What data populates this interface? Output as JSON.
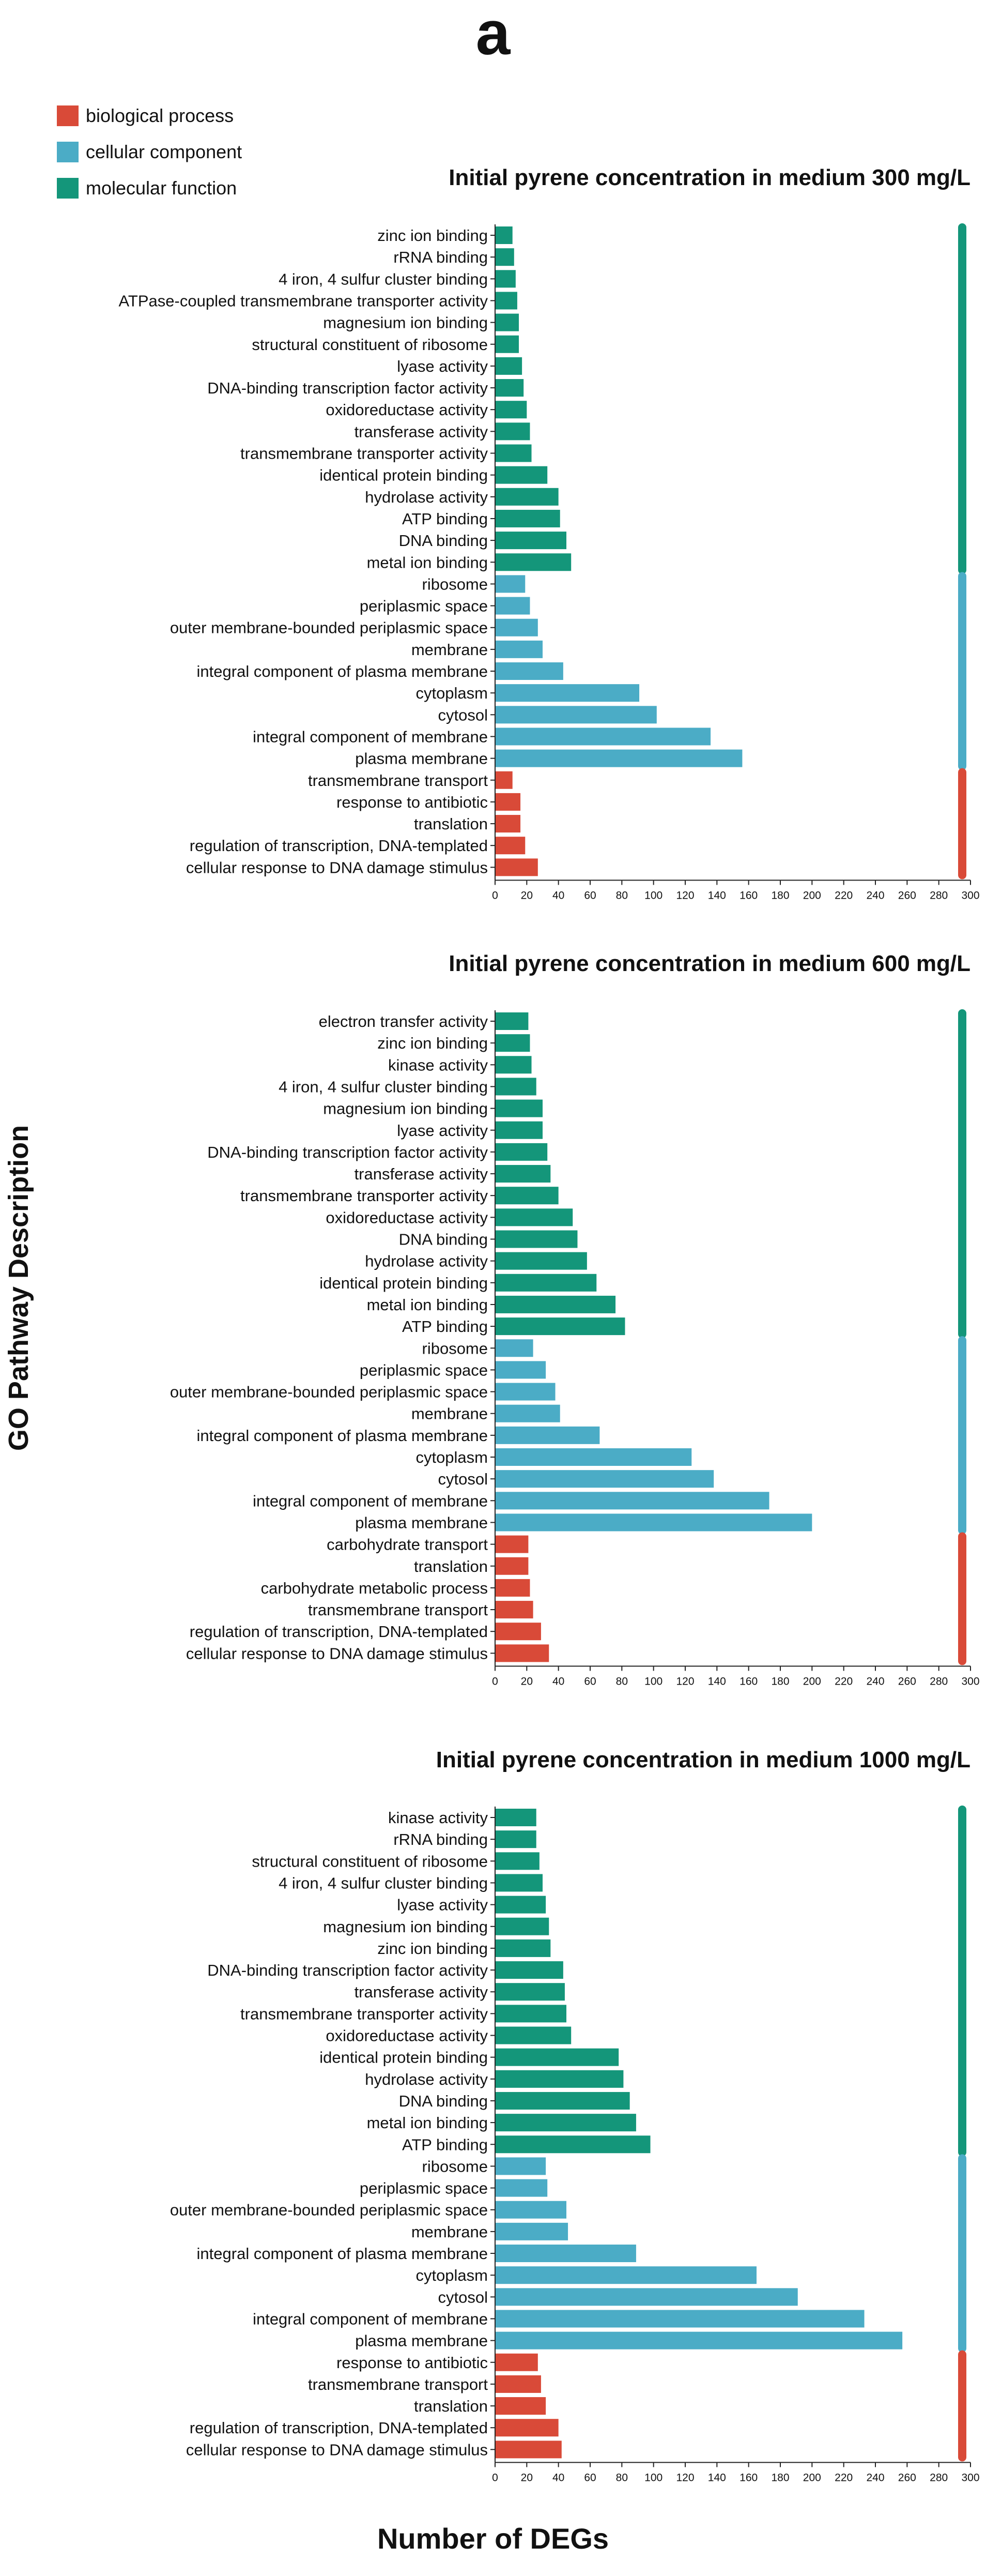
{
  "panel_label": "a",
  "axis_titles": {
    "y": "GO Pathway Description",
    "x": "Number of DEGs"
  },
  "legend": [
    {
      "label": "biological process",
      "color": "#d94a38"
    },
    {
      "label": "cellular component",
      "color": "#4bacc6"
    },
    {
      "label": "molecular function",
      "color": "#14967a"
    }
  ],
  "colors": {
    "biological process": "#d94a38",
    "cellular component": "#4bacc6",
    "molecular function": "#14967a"
  },
  "chart_data": [
    {
      "type": "bar",
      "orientation": "horizontal",
      "title": "Initial pyrene concentration in medium 300 mg/L",
      "xlabel": "Number of DEGs",
      "ylabel": "GO Pathway Description",
      "xlim": [
        0,
        300
      ],
      "xticks": [
        0,
        20,
        40,
        60,
        80,
        100,
        120,
        140,
        160,
        180,
        200,
        220,
        240,
        260,
        280,
        300
      ],
      "bars": [
        {
          "label": "zinc ion binding",
          "value": 11,
          "category": "molecular function"
        },
        {
          "label": "rRNA binding",
          "value": 12,
          "category": "molecular function"
        },
        {
          "label": "4 iron, 4 sulfur cluster binding",
          "value": 13,
          "category": "molecular function"
        },
        {
          "label": "ATPase-coupled transmembrane transporter activity",
          "value": 14,
          "category": "molecular function"
        },
        {
          "label": "magnesium ion binding",
          "value": 15,
          "category": "molecular function"
        },
        {
          "label": "structural constituent of ribosome",
          "value": 15,
          "category": "molecular function"
        },
        {
          "label": "lyase activity",
          "value": 17,
          "category": "molecular function"
        },
        {
          "label": "DNA-binding transcription factor activity",
          "value": 18,
          "category": "molecular function"
        },
        {
          "label": "oxidoreductase activity",
          "value": 20,
          "category": "molecular function"
        },
        {
          "label": "transferase activity",
          "value": 22,
          "category": "molecular function"
        },
        {
          "label": "transmembrane transporter activity",
          "value": 23,
          "category": "molecular function"
        },
        {
          "label": "identical protein binding",
          "value": 33,
          "category": "molecular function"
        },
        {
          "label": "hydrolase activity",
          "value": 40,
          "category": "molecular function"
        },
        {
          "label": "ATP binding",
          "value": 41,
          "category": "molecular function"
        },
        {
          "label": "DNA binding",
          "value": 45,
          "category": "molecular function"
        },
        {
          "label": "metal ion binding",
          "value": 48,
          "category": "molecular function"
        },
        {
          "label": "ribosome",
          "value": 19,
          "category": "cellular component"
        },
        {
          "label": "periplasmic space",
          "value": 22,
          "category": "cellular component"
        },
        {
          "label": "outer membrane-bounded periplasmic space",
          "value": 27,
          "category": "cellular component"
        },
        {
          "label": "membrane",
          "value": 30,
          "category": "cellular component"
        },
        {
          "label": "integral component of plasma membrane",
          "value": 43,
          "category": "cellular component"
        },
        {
          "label": "cytoplasm",
          "value": 91,
          "category": "cellular component"
        },
        {
          "label": "cytosol",
          "value": 102,
          "category": "cellular component"
        },
        {
          "label": "integral component of membrane",
          "value": 136,
          "category": "cellular component"
        },
        {
          "label": "plasma membrane",
          "value": 156,
          "category": "cellular component"
        },
        {
          "label": "transmembrane transport",
          "value": 11,
          "category": "biological process"
        },
        {
          "label": "response to antibiotic",
          "value": 16,
          "category": "biological process"
        },
        {
          "label": "translation",
          "value": 16,
          "category": "biological process"
        },
        {
          "label": "regulation of transcription, DNA-templated",
          "value": 19,
          "category": "biological process"
        },
        {
          "label": "cellular response to DNA damage stimulus",
          "value": 27,
          "category": "biological process"
        }
      ]
    },
    {
      "type": "bar",
      "orientation": "horizontal",
      "title": "Initial pyrene concentration in medium 600 mg/L",
      "xlabel": "Number of DEGs",
      "ylabel": "GO Pathway Description",
      "xlim": [
        0,
        300
      ],
      "xticks": [
        0,
        20,
        40,
        60,
        80,
        100,
        120,
        140,
        160,
        180,
        200,
        220,
        240,
        260,
        280,
        300
      ],
      "bars": [
        {
          "label": "electron transfer activity",
          "value": 21,
          "category": "molecular function"
        },
        {
          "label": "zinc ion binding",
          "value": 22,
          "category": "molecular function"
        },
        {
          "label": "kinase activity",
          "value": 23,
          "category": "molecular function"
        },
        {
          "label": "4 iron, 4 sulfur cluster binding",
          "value": 26,
          "category": "molecular function"
        },
        {
          "label": "magnesium ion binding",
          "value": 30,
          "category": "molecular function"
        },
        {
          "label": "lyase activity",
          "value": 30,
          "category": "molecular function"
        },
        {
          "label": "DNA-binding transcription factor activity",
          "value": 33,
          "category": "molecular function"
        },
        {
          "label": "transferase activity",
          "value": 35,
          "category": "molecular function"
        },
        {
          "label": "transmembrane transporter activity",
          "value": 40,
          "category": "molecular function"
        },
        {
          "label": "oxidoreductase activity",
          "value": 49,
          "category": "molecular function"
        },
        {
          "label": "DNA binding",
          "value": 52,
          "category": "molecular function"
        },
        {
          "label": "hydrolase activity",
          "value": 58,
          "category": "molecular function"
        },
        {
          "label": "identical protein binding",
          "value": 64,
          "category": "molecular function"
        },
        {
          "label": "metal ion binding",
          "value": 76,
          "category": "molecular function"
        },
        {
          "label": "ATP binding",
          "value": 82,
          "category": "molecular function"
        },
        {
          "label": "ribosome",
          "value": 24,
          "category": "cellular component"
        },
        {
          "label": "periplasmic space",
          "value": 32,
          "category": "cellular component"
        },
        {
          "label": "outer membrane-bounded periplasmic space",
          "value": 38,
          "category": "cellular component"
        },
        {
          "label": "membrane",
          "value": 41,
          "category": "cellular component"
        },
        {
          "label": "integral component of plasma membrane",
          "value": 66,
          "category": "cellular component"
        },
        {
          "label": "cytoplasm",
          "value": 124,
          "category": "cellular component"
        },
        {
          "label": "cytosol",
          "value": 138,
          "category": "cellular component"
        },
        {
          "label": "integral component of membrane",
          "value": 173,
          "category": "cellular component"
        },
        {
          "label": "plasma membrane",
          "value": 200,
          "category": "cellular component"
        },
        {
          "label": "carbohydrate transport",
          "value": 21,
          "category": "biological process"
        },
        {
          "label": "translation",
          "value": 21,
          "category": "biological process"
        },
        {
          "label": "carbohydrate metabolic process",
          "value": 22,
          "category": "biological process"
        },
        {
          "label": "transmembrane transport",
          "value": 24,
          "category": "biological process"
        },
        {
          "label": "regulation of transcription, DNA-templated",
          "value": 29,
          "category": "biological process"
        },
        {
          "label": "cellular response to DNA damage stimulus",
          "value": 34,
          "category": "biological process"
        }
      ]
    },
    {
      "type": "bar",
      "orientation": "horizontal",
      "title": "Initial pyrene concentration in medium 1000 mg/L",
      "xlabel": "Number of DEGs",
      "ylabel": "GO Pathway Description",
      "xlim": [
        0,
        300
      ],
      "xticks": [
        0,
        20,
        40,
        60,
        80,
        100,
        120,
        140,
        160,
        180,
        200,
        220,
        240,
        260,
        280,
        300
      ],
      "bars": [
        {
          "label": "kinase activity",
          "value": 26,
          "category": "molecular function"
        },
        {
          "label": "rRNA binding",
          "value": 26,
          "category": "molecular function"
        },
        {
          "label": "structural constituent of ribosome",
          "value": 28,
          "category": "molecular function"
        },
        {
          "label": "4 iron, 4 sulfur cluster binding",
          "value": 30,
          "category": "molecular function"
        },
        {
          "label": "lyase activity",
          "value": 32,
          "category": "molecular function"
        },
        {
          "label": "magnesium ion binding",
          "value": 34,
          "category": "molecular function"
        },
        {
          "label": "zinc ion binding",
          "value": 35,
          "category": "molecular function"
        },
        {
          "label": "DNA-binding transcription factor activity",
          "value": 43,
          "category": "molecular function"
        },
        {
          "label": "transferase activity",
          "value": 44,
          "category": "molecular function"
        },
        {
          "label": "transmembrane transporter activity",
          "value": 45,
          "category": "molecular function"
        },
        {
          "label": "oxidoreductase activity",
          "value": 48,
          "category": "molecular function"
        },
        {
          "label": "identical protein binding",
          "value": 78,
          "category": "molecular function"
        },
        {
          "label": "hydrolase activity",
          "value": 81,
          "category": "molecular function"
        },
        {
          "label": "DNA binding",
          "value": 85,
          "category": "molecular function"
        },
        {
          "label": "metal ion binding",
          "value": 89,
          "category": "molecular function"
        },
        {
          "label": "ATP binding",
          "value": 98,
          "category": "molecular function"
        },
        {
          "label": "ribosome",
          "value": 32,
          "category": "cellular component"
        },
        {
          "label": "periplasmic space",
          "value": 33,
          "category": "cellular component"
        },
        {
          "label": "outer membrane-bounded periplasmic space",
          "value": 45,
          "category": "cellular component"
        },
        {
          "label": "membrane",
          "value": 46,
          "category": "cellular component"
        },
        {
          "label": "integral component of plasma membrane",
          "value": 89,
          "category": "cellular component"
        },
        {
          "label": "cytoplasm",
          "value": 165,
          "category": "cellular component"
        },
        {
          "label": "cytosol",
          "value": 191,
          "category": "cellular component"
        },
        {
          "label": "integral component of membrane",
          "value": 233,
          "category": "cellular component"
        },
        {
          "label": "plasma membrane",
          "value": 257,
          "category": "cellular component"
        },
        {
          "label": "response to antibiotic",
          "value": 27,
          "category": "biological process"
        },
        {
          "label": "transmembrane transport",
          "value": 29,
          "category": "biological process"
        },
        {
          "label": "translation",
          "value": 32,
          "category": "biological process"
        },
        {
          "label": "regulation of transcription, DNA-templated",
          "value": 40,
          "category": "biological process"
        },
        {
          "label": "cellular response to DNA damage stimulus",
          "value": 42,
          "category": "biological process"
        }
      ]
    }
  ]
}
